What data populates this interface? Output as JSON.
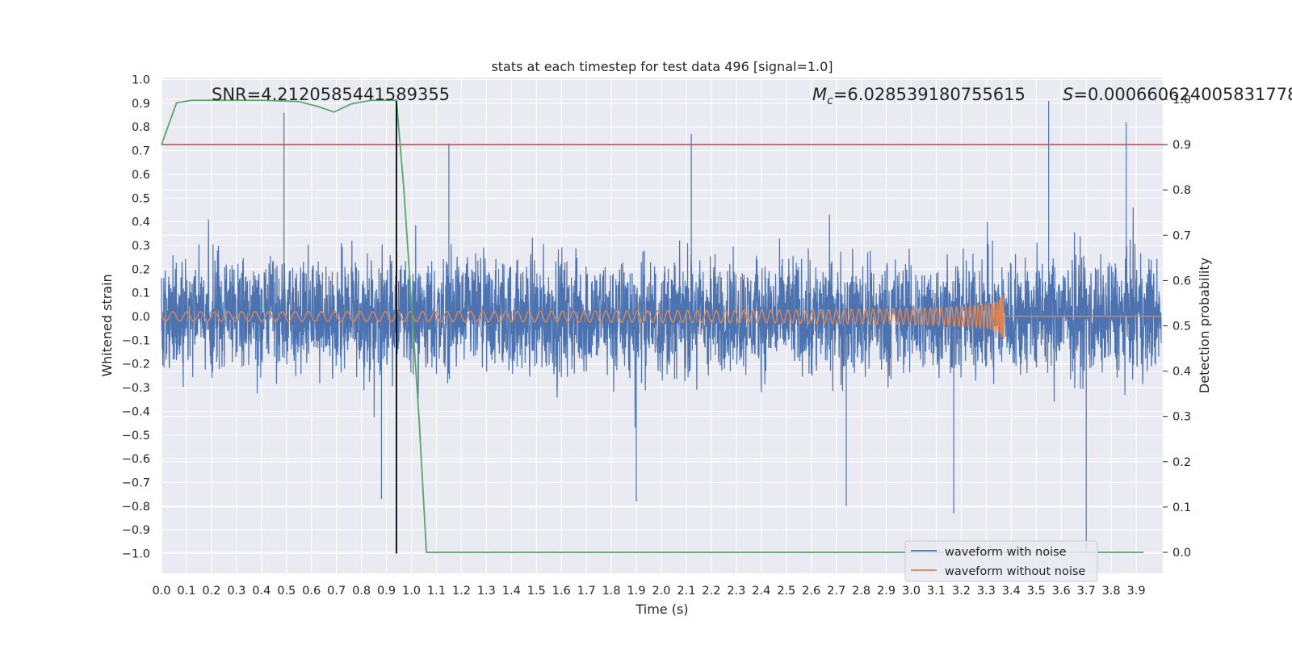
{
  "chart_data": {
    "type": "line",
    "title": "stats at each timestep for test data 496 [signal=1.0]",
    "xlabel": "Time (s)",
    "ylabel": "Whitened strain",
    "y2label": "Detection probability",
    "xlim": [
      0.0,
      4.0
    ],
    "ylim": [
      -1.09,
      1.0
    ],
    "y2lim": [
      -0.05,
      1.0
    ],
    "xticks": [
      "0.0",
      "0.1",
      "0.2",
      "0.3",
      "0.4",
      "0.5",
      "0.6",
      "0.7",
      "0.8",
      "0.9",
      "1.0",
      "1.1",
      "1.2",
      "1.3",
      "1.4",
      "1.5",
      "1.6",
      "1.7",
      "1.8",
      "1.9",
      "2.0",
      "2.1",
      "2.2",
      "2.3",
      "2.4",
      "2.5",
      "2.6",
      "2.7",
      "2.8",
      "2.9",
      "3.0",
      "3.1",
      "3.2",
      "3.3",
      "3.4",
      "3.5",
      "3.6",
      "3.7",
      "3.8",
      "3.9"
    ],
    "yticks": [
      "1.0",
      "0.9",
      "0.8",
      "0.7",
      "0.6",
      "0.5",
      "0.4",
      "0.3",
      "0.2",
      "0.1",
      "0.0",
      "−0.1",
      "−0.2",
      "−0.3",
      "−0.4",
      "−0.5",
      "−0.6",
      "−0.7",
      "−0.8",
      "−0.9",
      "−1.0"
    ],
    "y2ticks": [
      "1.0",
      "0.9",
      "0.8",
      "0.7",
      "0.6",
      "0.5",
      "0.4",
      "0.3",
      "0.2",
      "0.1",
      "0.0"
    ],
    "grid": true,
    "legend_position": "lower-right",
    "annotations": {
      "snr": "SNR=4.2120585441589355",
      "mc_symbol": "M",
      "mc_sub": "c",
      "mc_value": "=6.028539180755615",
      "s_symbol": "S",
      "s_value": "=0.0006606240058317780"
    },
    "series": [
      {
        "name": "waveform with noise",
        "color": "#4c72b0",
        "kind": "noisy-strain",
        "approx_range": [
          -1.0,
          0.91
        ],
        "notable_peaks": [
          {
            "x": 0.49,
            "y": 0.86
          },
          {
            "x": 1.15,
            "y": 0.73
          },
          {
            "x": 2.12,
            "y": 0.77
          },
          {
            "x": 3.55,
            "y": 0.91
          },
          {
            "x": 3.86,
            "y": 0.82
          },
          {
            "x": 0.88,
            "y": -0.77
          },
          {
            "x": 1.9,
            "y": -0.78
          },
          {
            "x": 2.74,
            "y": -0.8
          },
          {
            "x": 3.17,
            "y": -0.83
          },
          {
            "x": 3.7,
            "y": -1.0
          }
        ]
      },
      {
        "name": "waveform without noise",
        "color": "#dd8452",
        "kind": "chirp",
        "merger_time": 3.37,
        "amplitude_early": 0.02,
        "amplitude_peak": 0.12
      }
    ],
    "detection_probability": {
      "color": "#55a868",
      "x": [
        0.0,
        0.06,
        0.12,
        0.2,
        0.3,
        0.4,
        0.5,
        0.55,
        0.62,
        0.69,
        0.76,
        0.84,
        0.9,
        0.94,
        0.97,
        1.0,
        1.03,
        1.06,
        1.12,
        1.5,
        2.0,
        2.5,
        3.0,
        3.5,
        3.93
      ],
      "y": [
        0.9,
        0.992,
        0.998,
        0.998,
        0.998,
        0.998,
        0.996,
        0.995,
        0.985,
        0.972,
        0.99,
        0.998,
        0.998,
        0.998,
        0.8,
        0.55,
        0.3,
        0.0,
        0.0,
        0.0,
        0.0,
        0.0,
        0.0,
        0.0,
        0.0
      ]
    },
    "threshold_line": {
      "color": "#c44e52",
      "y2": 0.9
    },
    "marker_line": {
      "color": "#000000",
      "x": 0.94,
      "y_from": -1.0,
      "y_to": 0.91
    }
  }
}
